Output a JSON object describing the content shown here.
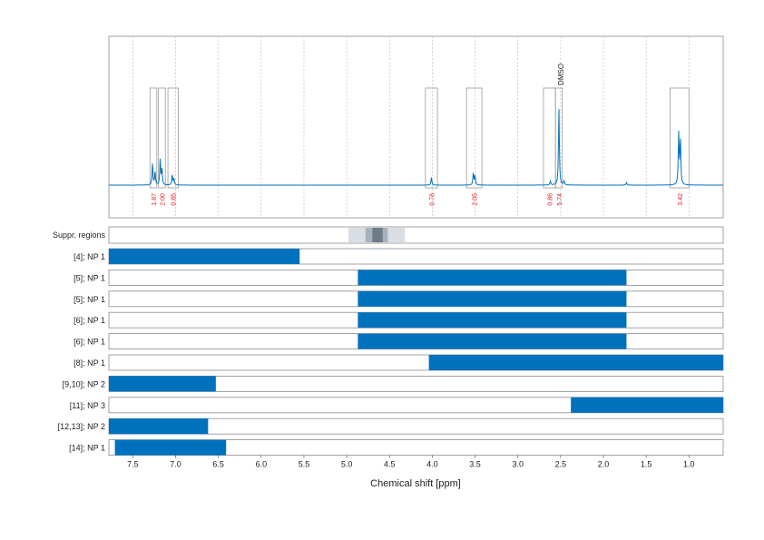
{
  "chart_data": {
    "type": "line",
    "xlabel": "Chemical shift [ppm]",
    "x_reversed": true,
    "xlim": [
      7.78,
      0.6
    ],
    "x_ticks": [
      "7.5",
      "7.0",
      "6.5",
      "6.0",
      "5.5",
      "5.0",
      "4.5",
      "4.0",
      "3.5",
      "3.0",
      "2.5",
      "2.0",
      "1.5",
      "1.0"
    ],
    "x_tick_values": [
      7.5,
      7.0,
      6.5,
      6.0,
      5.5,
      5.0,
      4.5,
      4.0,
      3.5,
      3.0,
      2.5,
      2.0,
      1.5,
      1.0
    ],
    "grid": "vertical dotted",
    "spectrum": {
      "color": "#0072bd",
      "peaks": [
        {
          "ppm": 7.27,
          "height": 0.17
        },
        {
          "ppm": 7.24,
          "height": 0.1
        },
        {
          "ppm": 7.18,
          "height": 0.2
        },
        {
          "ppm": 7.16,
          "height": 0.12
        },
        {
          "ppm": 7.04,
          "height": 0.08
        },
        {
          "ppm": 7.02,
          "height": 0.05
        },
        {
          "ppm": 4.01,
          "height": 0.06
        },
        {
          "ppm": 3.52,
          "height": 0.1
        },
        {
          "ppm": 3.5,
          "height": 0.07
        },
        {
          "ppm": 2.62,
          "height": 0.03
        },
        {
          "ppm": 2.52,
          "height": 0.6
        },
        {
          "ppm": 2.46,
          "height": 0.03
        },
        {
          "ppm": 1.73,
          "height": 0.02
        },
        {
          "ppm": 1.12,
          "height": 0.4
        },
        {
          "ppm": 1.1,
          "height": 0.36
        }
      ]
    },
    "integration_boxes": [
      {
        "from": 7.3,
        "to": 7.22,
        "label": "1.87"
      },
      {
        "from": 7.2,
        "to": 7.12,
        "label": "2.00"
      },
      {
        "from": 7.09,
        "to": 6.97,
        "label": "0.85"
      },
      {
        "from": 4.08,
        "to": 3.94,
        "label": "0.78"
      },
      {
        "from": 3.6,
        "to": 3.42,
        "label": "2.05"
      },
      {
        "from": 2.7,
        "to": 2.56,
        "label": "0.86"
      },
      {
        "from": 2.56,
        "to": 2.48,
        "label": "5.74"
      },
      {
        "from": 1.22,
        "to": 1.0,
        "label": "3.42"
      }
    ],
    "integral_color": "#e31a1c",
    "solvent_label": {
      "ppm": 2.5,
      "text": "DMSO"
    },
    "suppressed_regions": {
      "label": "Suppr. regions",
      "bands": [
        {
          "from": 4.98,
          "to": 4.32,
          "shade": "#d9dee5"
        },
        {
          "from": 4.78,
          "to": 4.52,
          "shade": "#a8b2bd"
        },
        {
          "from": 4.7,
          "to": 4.58,
          "shade": "#6e7c88"
        }
      ]
    },
    "ranges": [
      {
        "label": "[4]; NP 1",
        "from": 7.78,
        "to": 5.55
      },
      {
        "label": "[5]; NP 1",
        "from": 4.87,
        "to": 1.73
      },
      {
        "label": "[5]; NP 1",
        "from": 4.87,
        "to": 1.73
      },
      {
        "label": "[6]; NP 1",
        "from": 4.87,
        "to": 1.73
      },
      {
        "label": "[6]; NP 1",
        "from": 4.87,
        "to": 1.73
      },
      {
        "label": "[8]; NP 1",
        "from": 4.04,
        "to": 0.6
      },
      {
        "label": "[9,10]; NP 2",
        "from": 7.78,
        "to": 6.53
      },
      {
        "label": "[11]; NP 3",
        "from": 2.38,
        "to": 0.6
      },
      {
        "label": "[12,13]; NP 2",
        "from": 7.78,
        "to": 6.62
      },
      {
        "label": "[14]; NP 1",
        "from": 7.71,
        "to": 6.41
      }
    ],
    "bar_color": "#0072bd"
  }
}
